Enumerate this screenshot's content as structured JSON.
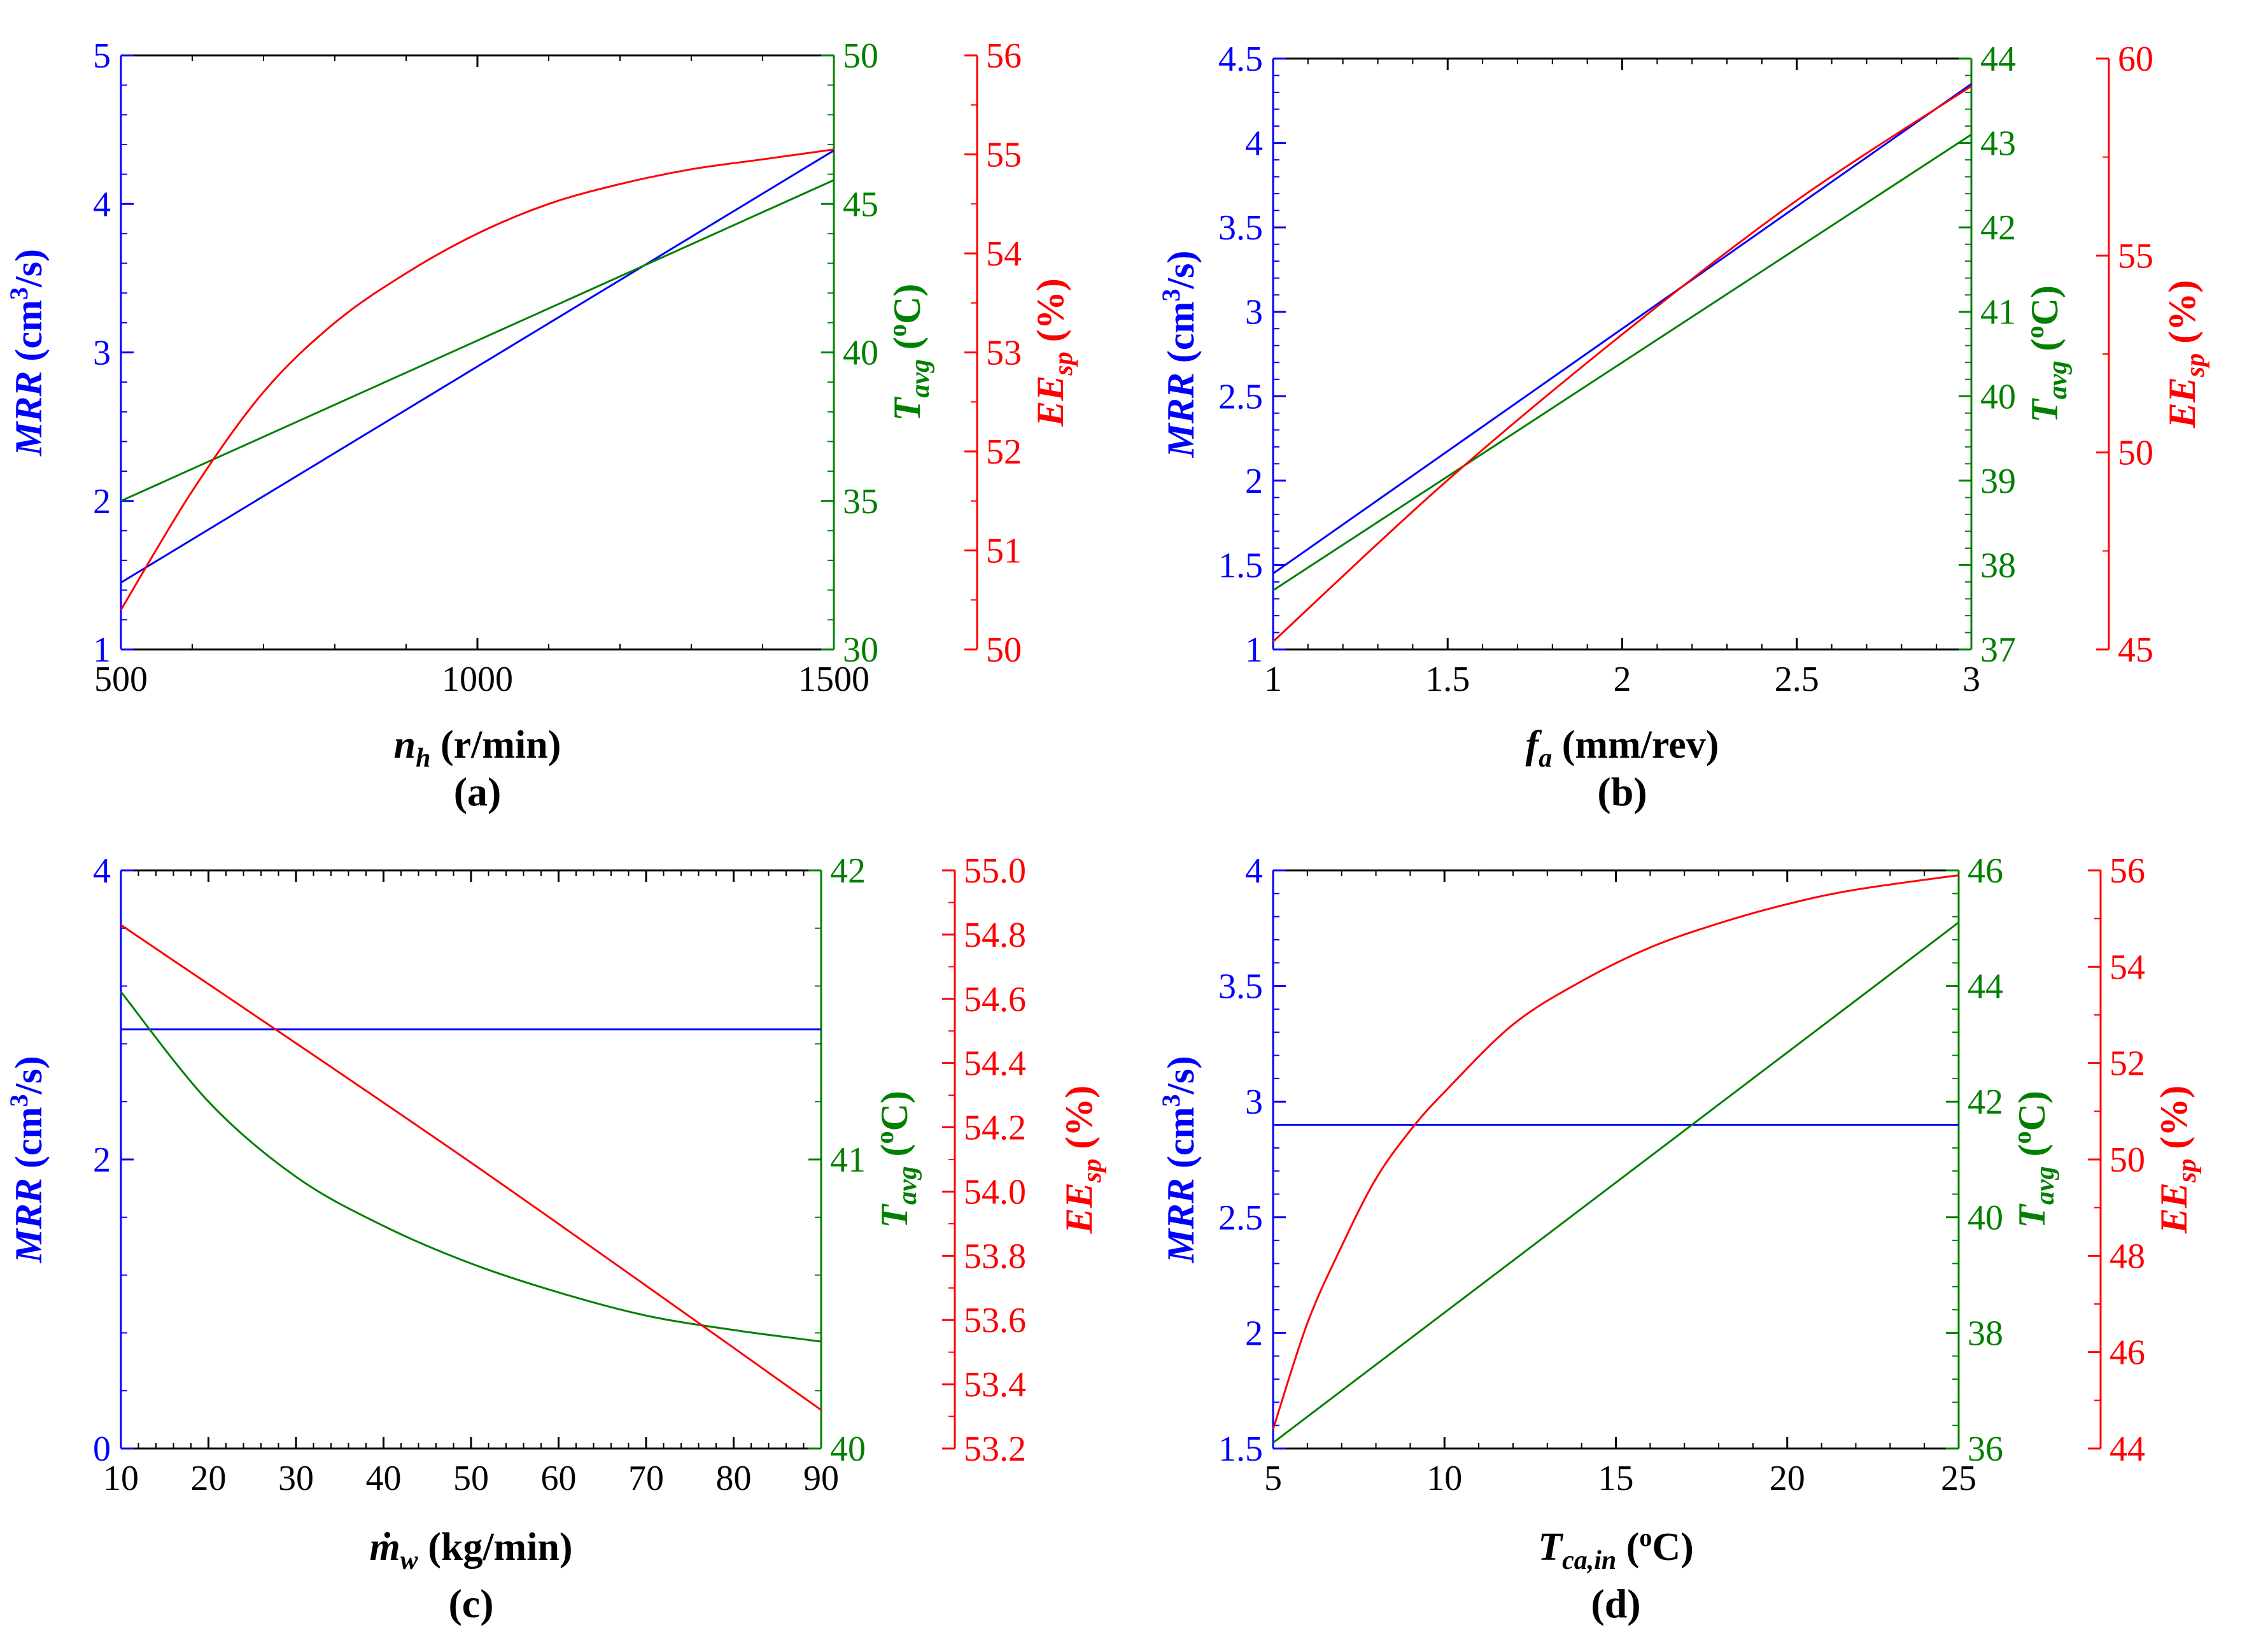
{
  "colors": {
    "mrr": "#0000ff",
    "tavg": "#008000",
    "eesp": "#ff0000",
    "frame": "#000000"
  },
  "chart_data": [
    {
      "type": "line",
      "caption": "(a)",
      "xlabel": {
        "main": "n",
        "sub": "h",
        "unit": " (r/min)"
      },
      "x_range": [
        500,
        1500
      ],
      "x_ticks": [
        "500",
        "1000",
        "1500"
      ],
      "axes": {
        "mrr": {
          "label": "MRR",
          "unit_pre": " (cm",
          "unit_sup": "3",
          "unit_post": "/s)",
          "range": [
            1,
            5
          ],
          "ticks": [
            "1",
            "2",
            "3",
            "4",
            "5"
          ]
        },
        "tavg": {
          "label_main": "T",
          "label_sub": "avg",
          "unit_pre": " (",
          "unit_sup": "o",
          "unit_post": "C)",
          "range": [
            30,
            50
          ],
          "ticks": [
            "30",
            "35",
            "40",
            "45",
            "50"
          ]
        },
        "eesp": {
          "label_main": "EE",
          "label_sub": "sp",
          "unit": " (%)",
          "range": [
            50,
            56
          ],
          "ticks": [
            "50",
            "51",
            "52",
            "53",
            "54",
            "55",
            "56"
          ]
        }
      },
      "series": [
        {
          "name": "MRR",
          "axis": "mrr",
          "x": [
            500,
            1500
          ],
          "y": [
            1.45,
            4.36
          ]
        },
        {
          "name": "T_avg",
          "axis": "tavg",
          "x": [
            500,
            1500
          ],
          "y": [
            35.0,
            45.8
          ]
        },
        {
          "name": "EE_sp",
          "axis": "eesp",
          "x": [
            500,
            600,
            700,
            800,
            900,
            1000,
            1100,
            1200,
            1300,
            1400,
            1500
          ],
          "y": [
            50.4,
            51.6,
            52.6,
            53.3,
            53.8,
            54.2,
            54.5,
            54.7,
            54.85,
            54.95,
            55.05
          ]
        }
      ]
    },
    {
      "type": "line",
      "caption": "(b)",
      "xlabel": {
        "main": "f",
        "sub": "a",
        "unit": " (mm/rev)"
      },
      "x_range": [
        1,
        3
      ],
      "x_ticks": [
        "1",
        "1.5",
        "2",
        "2.5",
        "3"
      ],
      "axes": {
        "mrr": {
          "label": "MRR",
          "unit_pre": " (cm",
          "unit_sup": "3",
          "unit_post": "/s)",
          "range": [
            1,
            4.5
          ],
          "ticks": [
            "1",
            "1.5",
            "2",
            "2.5",
            "3",
            "3.5",
            "4",
            "4.5"
          ]
        },
        "tavg": {
          "label_main": "T",
          "label_sub": "avg",
          "unit_pre": " (",
          "unit_sup": "o",
          "unit_post": "C)",
          "range": [
            37,
            44
          ],
          "ticks": [
            "37",
            "38",
            "39",
            "40",
            "41",
            "42",
            "43",
            "44"
          ]
        },
        "eesp": {
          "label_main": "EE",
          "label_sub": "sp",
          "unit": " (%)",
          "range": [
            45,
            60
          ],
          "ticks": [
            "45",
            "50",
            "55",
            "60"
          ]
        }
      },
      "series": [
        {
          "name": "MRR",
          "axis": "mrr",
          "x": [
            1,
            3
          ],
          "y": [
            1.45,
            4.35
          ]
        },
        {
          "name": "T_avg",
          "axis": "tavg",
          "x": [
            1,
            3
          ],
          "y": [
            37.7,
            43.1
          ]
        },
        {
          "name": "EE_sp",
          "axis": "eesp",
          "x": [
            1,
            1.5,
            2,
            2.5,
            3
          ],
          "y": [
            45.2,
            49.3,
            53.0,
            56.4,
            59.3
          ]
        }
      ]
    },
    {
      "type": "line",
      "caption": "(c)",
      "xlabel": {
        "main": "ṁ",
        "sub": "w",
        "unit": " (kg/min)"
      },
      "x_range": [
        10,
        90
      ],
      "x_ticks": [
        "10",
        "20",
        "30",
        "40",
        "50",
        "60",
        "70",
        "80",
        "90"
      ],
      "axes": {
        "mrr": {
          "label": "MRR",
          "unit_pre": " (cm",
          "unit_sup": "3",
          "unit_post": "/s)",
          "range": [
            0,
            4
          ],
          "ticks": [
            "0",
            "2",
            "4"
          ]
        },
        "tavg": {
          "label_main": "T",
          "label_sub": "avg",
          "unit_pre": " (",
          "unit_sup": "o",
          "unit_post": "C)",
          "range": [
            40,
            42
          ],
          "ticks": [
            "40",
            "41",
            "42"
          ]
        },
        "eesp": {
          "label_main": "EE",
          "label_sub": "sp",
          "unit": " (%)",
          "range": [
            53.2,
            55.0
          ],
          "ticks": [
            "53.2",
            "53.4",
            "53.6",
            "53.8",
            "54.0",
            "54.2",
            "54.4",
            "54.6",
            "54.8",
            "55.0"
          ]
        }
      },
      "series": [
        {
          "name": "MRR",
          "axis": "mrr",
          "x": [
            10,
            90
          ],
          "y": [
            2.9,
            2.9
          ]
        },
        {
          "name": "T_avg",
          "axis": "tavg",
          "x": [
            10,
            20,
            30,
            40,
            50,
            60,
            70,
            80,
            90
          ],
          "y": [
            41.58,
            41.2,
            40.94,
            40.77,
            40.64,
            40.54,
            40.46,
            40.41,
            40.37
          ]
        },
        {
          "name": "EE_sp",
          "axis": "eesp",
          "x": [
            10,
            50,
            90
          ],
          "y": [
            54.83,
            54.09,
            53.32
          ]
        }
      ]
    },
    {
      "type": "line",
      "caption": "(d)",
      "xlabel": {
        "main": "T",
        "sub": "ca,in",
        "unit_pre": " (",
        "unit_sup": "o",
        "unit_post": "C)"
      },
      "x_range": [
        5,
        25
      ],
      "x_ticks": [
        "5",
        "10",
        "15",
        "20",
        "25"
      ],
      "axes": {
        "mrr": {
          "label": "MRR",
          "unit_pre": " (cm",
          "unit_sup": "3",
          "unit_post": "/s)",
          "range": [
            1.5,
            4
          ],
          "ticks": [
            "1.5",
            "2",
            "2.5",
            "3",
            "3.5",
            "4"
          ]
        },
        "tavg": {
          "label_main": "T",
          "label_sub": "avg",
          "unit_pre": " (",
          "unit_sup": "o",
          "unit_post": "C)",
          "range": [
            36,
            46
          ],
          "ticks": [
            "36",
            "38",
            "40",
            "42",
            "44",
            "46"
          ]
        },
        "eesp": {
          "label_main": "EE",
          "label_sub": "sp",
          "unit": " (%)",
          "range": [
            44,
            56
          ],
          "ticks": [
            "44",
            "46",
            "48",
            "50",
            "52",
            "54",
            "56"
          ]
        }
      },
      "series": [
        {
          "name": "MRR",
          "axis": "mrr",
          "x": [
            5,
            25
          ],
          "y": [
            2.9,
            2.9
          ]
        },
        {
          "name": "T_avg",
          "axis": "tavg",
          "x": [
            5,
            25
          ],
          "y": [
            36.1,
            45.1
          ]
        },
        {
          "name": "EE_sp",
          "axis": "eesp",
          "x": [
            5,
            6,
            7,
            8,
            9,
            10,
            12,
            14,
            16,
            18,
            20,
            22,
            25
          ],
          "y": [
            44.4,
            46.6,
            48.2,
            49.6,
            50.6,
            51.4,
            52.8,
            53.7,
            54.4,
            54.9,
            55.3,
            55.6,
            55.9
          ]
        }
      ]
    }
  ]
}
